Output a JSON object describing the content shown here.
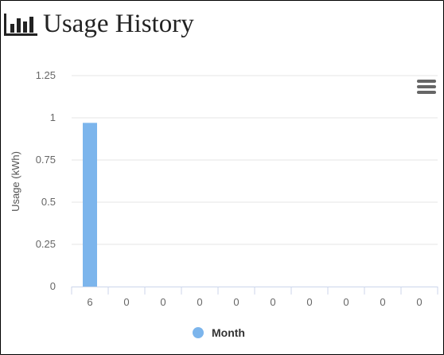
{
  "header": {
    "title": "Usage History",
    "icon": "bar-chart-icon"
  },
  "menu": {
    "icon": "hamburger-menu-icon"
  },
  "colors": {
    "series": "#7cb5ec",
    "grid": "#e6e6e6",
    "axis": "#ccd6eb"
  },
  "chart_data": {
    "type": "bar",
    "title": "",
    "xlabel": "",
    "ylabel": "Usage (kWh)",
    "ylim": [
      0,
      1.25
    ],
    "yticks": [
      "0",
      "0.25",
      "0.5",
      "0.75",
      "1",
      "1.25"
    ],
    "categories": [
      "6",
      "0",
      "0",
      "0",
      "0",
      "0",
      "0",
      "0",
      "0",
      "0"
    ],
    "series": [
      {
        "name": "Month",
        "values": [
          0.97,
          0,
          0,
          0,
          0,
          0,
          0,
          0,
          0,
          0
        ]
      }
    ],
    "grid": true,
    "legend": "bottom-center"
  }
}
